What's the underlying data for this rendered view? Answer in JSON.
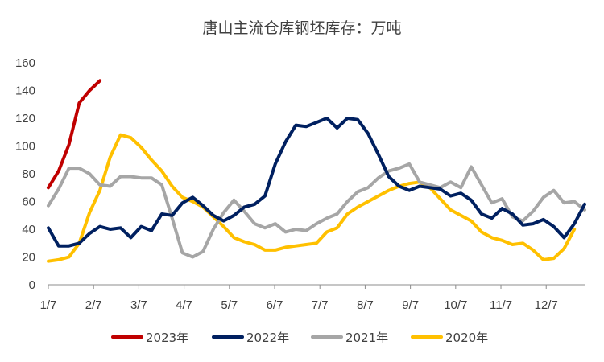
{
  "chart_data": {
    "type": "line",
    "title": "唐山主流仓库钢坯库存：万吨",
    "xlabel": "",
    "ylabel": "",
    "ylim": [
      0,
      160
    ],
    "yticks": [
      0,
      20,
      40,
      60,
      80,
      100,
      120,
      140,
      160
    ],
    "x_tick_labels": [
      "1/7",
      "2/7",
      "3/7",
      "4/7",
      "5/7",
      "6/7",
      "7/7",
      "8/7",
      "9/7",
      "10/7",
      "11/7",
      "12/7"
    ],
    "x_unit": "week index (0 = 1/7, 4.3 weeks per month)",
    "xlim": [
      0,
      52
    ],
    "grid": false,
    "legend_position": "bottom",
    "series": [
      {
        "name": "2023年",
        "color": "#C00000",
        "x": [
          0,
          1,
          2,
          3,
          4,
          5
        ],
        "values": [
          70,
          82,
          101,
          131,
          140,
          147
        ]
      },
      {
        "name": "2022年",
        "color": "#002060",
        "x": [
          0,
          1,
          2,
          3,
          4,
          5,
          6,
          7,
          8,
          9,
          10,
          11,
          12,
          13,
          14,
          15,
          16,
          17,
          18,
          19,
          20,
          21,
          22,
          23,
          24,
          25,
          26,
          27,
          28,
          29,
          30,
          31,
          32,
          33,
          34,
          35,
          36,
          37,
          38,
          39,
          40,
          41,
          42,
          43,
          44,
          45,
          46,
          47,
          48,
          49,
          50,
          51,
          52
        ],
        "values": [
          41,
          28,
          28,
          30,
          37,
          42,
          40,
          41,
          34,
          42,
          39,
          51,
          50,
          59,
          63,
          57,
          50,
          46,
          50,
          56,
          58,
          64,
          87,
          103,
          115,
          114,
          117,
          120,
          113,
          120,
          119,
          109,
          94,
          78,
          71,
          68,
          71,
          70,
          69,
          64,
          66,
          61,
          51,
          48,
          55,
          51,
          43,
          44,
          47,
          42,
          34,
          44,
          58
        ]
      },
      {
        "name": "2021年",
        "color": "#A6A6A6",
        "x": [
          0,
          1,
          2,
          3,
          4,
          5,
          6,
          7,
          8,
          9,
          10,
          11,
          12,
          13,
          14,
          15,
          16,
          17,
          18,
          19,
          20,
          21,
          22,
          23,
          24,
          25,
          26,
          27,
          28,
          29,
          30,
          31,
          32,
          33,
          34,
          35,
          36,
          37,
          38,
          39,
          40,
          41,
          42,
          43,
          44,
          45,
          46,
          47,
          48,
          49,
          50,
          51,
          52
        ],
        "values": [
          57,
          69,
          84,
          84,
          80,
          72,
          71,
          78,
          78,
          77,
          77,
          72,
          48,
          23,
          20,
          24,
          40,
          52,
          61,
          53,
          44,
          41,
          44,
          38,
          40,
          39,
          44,
          48,
          51,
          60,
          67,
          70,
          77,
          82,
          84,
          87,
          74,
          72,
          70,
          74,
          70,
          85,
          72,
          59,
          62,
          49,
          46,
          53,
          63,
          68,
          59,
          60,
          54
        ]
      },
      {
        "name": "2020年",
        "color": "#FFC000",
        "x": [
          0,
          1,
          2,
          3,
          4,
          5,
          6,
          7,
          8,
          9,
          10,
          11,
          12,
          13,
          14,
          15,
          16,
          17,
          18,
          19,
          20,
          21,
          22,
          23,
          24,
          25,
          26,
          27,
          28,
          29,
          30,
          31,
          32,
          33,
          34,
          35,
          36,
          37,
          38,
          39,
          40,
          41,
          42,
          43,
          44,
          45,
          46,
          47,
          48,
          49,
          50,
          51,
          52
        ],
        "values": [
          17,
          18,
          20,
          30,
          52,
          68,
          92,
          108,
          106,
          99,
          90,
          82,
          71,
          63,
          60,
          56,
          49,
          42,
          34,
          31,
          29,
          25,
          25,
          27,
          28,
          29,
          30,
          38,
          41,
          51,
          56,
          60,
          64,
          68,
          71,
          73,
          74,
          70,
          62,
          54,
          50,
          46,
          38,
          34,
          32,
          29,
          30,
          25,
          18,
          19,
          26,
          40,
          null
        ]
      }
    ]
  }
}
